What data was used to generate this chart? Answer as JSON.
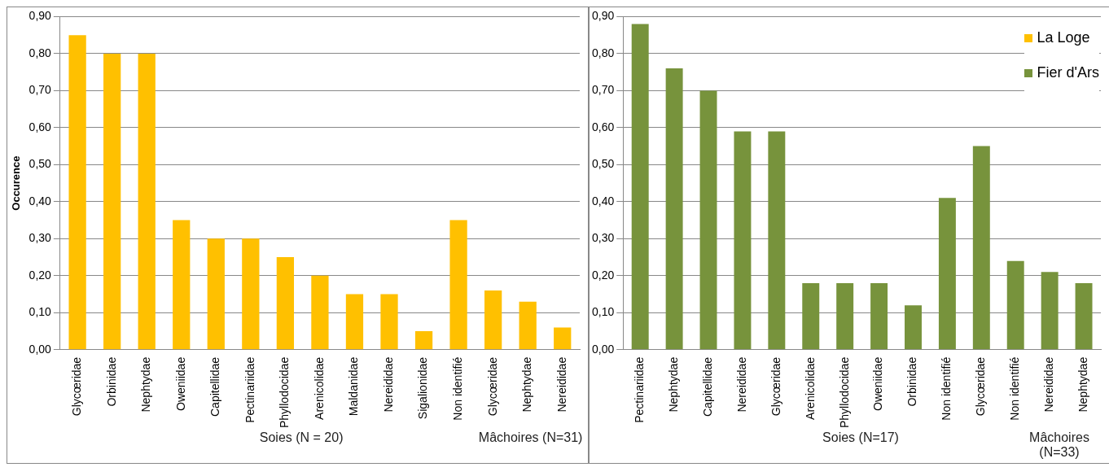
{
  "chart_data": [
    {
      "type": "bar",
      "ylabel": "Occurence",
      "categories": [
        "Glycœridae",
        "Orbinidae",
        "Nephtydae",
        "Oweniidae",
        "Capitellidae",
        "Pectinariidae",
        "Phyllodocidae",
        "Arenicolidae",
        "Maldanidae",
        "Nereididae",
        "Sigalionidae",
        "Non identifié",
        "Glycœridae",
        "Nephtydae",
        "Nereididae"
      ],
      "series": [
        {
          "name": "La Loge",
          "color": "#ffc000",
          "values": [
            0.85,
            0.8,
            0.8,
            0.35,
            0.3,
            0.3,
            0.25,
            0.2,
            0.15,
            0.15,
            0.05,
            0.35,
            0.16,
            0.13,
            0.06
          ]
        }
      ],
      "ylim": [
        0,
        0.9
      ],
      "yticks": [
        {
          "value": 0,
          "label": "0,00"
        },
        {
          "value": 0.1,
          "label": "0,10"
        },
        {
          "value": 0.2,
          "label": "0,20"
        },
        {
          "value": 0.3,
          "label": "0,30"
        },
        {
          "value": 0.4,
          "label": "0,40"
        },
        {
          "value": 0.5,
          "label": "0,50"
        },
        {
          "value": 0.6,
          "label": "0,60"
        },
        {
          "value": 0.7,
          "label": "0,70"
        },
        {
          "value": 0.8,
          "label": "0,80"
        },
        {
          "value": 0.9,
          "label": "0,90"
        }
      ],
      "grid": "y",
      "legend": "right",
      "annotations": [
        "Soies (N = 20)",
        "Mâchoires (N=31)"
      ]
    },
    {
      "type": "bar",
      "categories": [
        "Pectinariidae",
        "Nephtydae",
        "Capitellidae",
        "Nereididae",
        "Glycœridae",
        "Arenicolidae",
        "Phyllodocidae",
        "Oweniidae",
        "Orbinidae",
        "Non identifié",
        "Glycœridae",
        "Non identifié",
        "Nereididae",
        "Nephtydae"
      ],
      "series": [
        {
          "name": "Fier d'Ars",
          "color": "#77933c",
          "values": [
            0.88,
            0.76,
            0.7,
            0.59,
            0.59,
            0.18,
            0.18,
            0.18,
            0.12,
            0.41,
            0.55,
            0.24,
            0.21,
            0.18
          ]
        }
      ],
      "ylim": [
        0,
        0.9
      ],
      "yticks": [
        {
          "value": 0,
          "label": "0,00"
        },
        {
          "value": 0.1,
          "label": "0,10"
        },
        {
          "value": 0.2,
          "label": "0,20"
        },
        {
          "value": 0.3,
          "label": "0,30"
        },
        {
          "value": 0.4,
          "label": "0,40"
        },
        {
          "value": 0.5,
          "label": "0,50"
        },
        {
          "value": 0.6,
          "label": "0,60"
        },
        {
          "value": 0.7,
          "label": "0,70"
        },
        {
          "value": 0.8,
          "label": "0,80"
        },
        {
          "value": 0.9,
          "label": "0,90"
        }
      ],
      "grid": "y",
      "legend": "right",
      "annotations": [
        "Soies (N=17)",
        "Mâchoires (N=33)"
      ]
    }
  ]
}
